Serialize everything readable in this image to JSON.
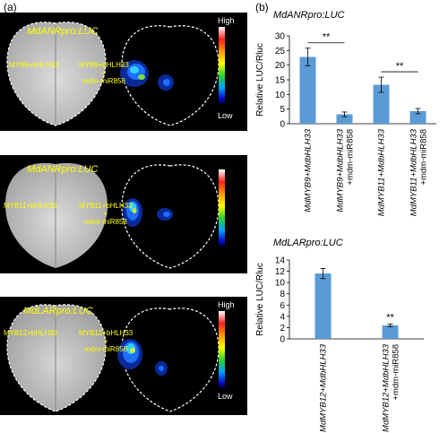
{
  "panel_labels": {
    "a": "(a)",
    "b": "(b)"
  },
  "scale": {
    "high": "High",
    "low": "Low"
  },
  "images": [
    {
      "promoter": "MdANRpro:LUC",
      "left_label": "MYB9+bHLH33",
      "right_label_line1": "MYB9+bHLH33",
      "right_label_line2": "+",
      "right_label_line3": "mdm-miR858"
    },
    {
      "promoter": "MdANRpro:LUC",
      "left_label": "MYB11+bHLH33",
      "right_label_line1": "MYB11+bHLH33",
      "right_label_line2": "+",
      "right_label_line3": "mdm-miR858"
    },
    {
      "promoter": "MdLARpro:LUC",
      "left_label": "MYB12+bHLH33",
      "right_label_line1": "MYB12+bHLH33",
      "right_label_line2": "+",
      "right_label_line3": "mdm-miR858"
    }
  ],
  "chart_data": [
    {
      "type": "bar",
      "title": "MdANRpro:LUC",
      "ylabel": "Relative LUC/Rluc",
      "ylim": [
        0,
        30
      ],
      "yticks": [
        0,
        5,
        10,
        15,
        20,
        25,
        30
      ],
      "categories": [
        {
          "line1": "MdMYB9+MdbHLH33",
          "line2": ""
        },
        {
          "line1": "MdMYB9+MdbHLH33",
          "line2": "+mdm-miR858"
        },
        {
          "line1": "MdMYB11+MdbHLH33",
          "line2": ""
        },
        {
          "line1": "MdMYB11+MdbHLH33",
          "line2": "+mdm-miR858"
        }
      ],
      "values": [
        22.8,
        3.2,
        13.3,
        4.3
      ],
      "errors": [
        3.0,
        0.8,
        2.6,
        0.9
      ],
      "significance": [
        {
          "from": 0,
          "to": 1,
          "label": "**"
        },
        {
          "from": 2,
          "to": 3,
          "label": "**"
        }
      ],
      "bar_color": "#5b9bd5"
    },
    {
      "type": "bar",
      "title": "MdLARpro:LUC",
      "ylabel": "Relative LUC/Rluc",
      "ylim": [
        0,
        14
      ],
      "yticks": [
        0,
        2,
        4,
        6,
        8,
        10,
        12,
        14
      ],
      "categories": [
        {
          "line1": "MdMYB12+MdbHLH33",
          "line2": ""
        },
        {
          "line1": "MdMYB12+MdbHLH33",
          "line2": "+mdm-miR858"
        }
      ],
      "values": [
        11.6,
        2.4
      ],
      "errors": [
        0.9,
        0.25
      ],
      "significance": [
        {
          "from": 1,
          "to": 1,
          "label": "**"
        }
      ],
      "bar_color": "#5b9bd5"
    }
  ]
}
